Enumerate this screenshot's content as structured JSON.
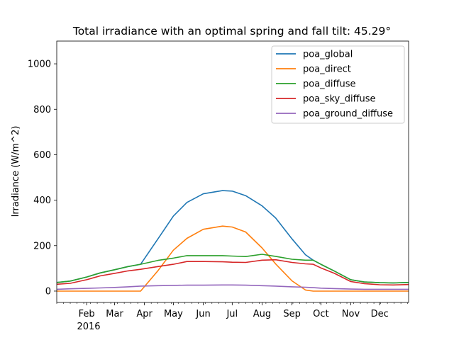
{
  "chart_data": {
    "type": "line",
    "title": "Total irradiance with an optimal spring and fall tilt: 45.29°",
    "xlabel": "",
    "ylabel": "Irradiance (W/m^2)",
    "xlim": [
      "2016-01-01",
      "2016-12-31"
    ],
    "ylim": [
      -50,
      1100
    ],
    "x_ticks": [
      {
        "date": "2016-02-01",
        "label": "Feb"
      },
      {
        "date": "2016-03-01",
        "label": "Mar"
      },
      {
        "date": "2016-04-01",
        "label": "Apr"
      },
      {
        "date": "2016-05-01",
        "label": "May"
      },
      {
        "date": "2016-06-01",
        "label": "Jun"
      },
      {
        "date": "2016-07-01",
        "label": "Jul"
      },
      {
        "date": "2016-08-01",
        "label": "Aug"
      },
      {
        "date": "2016-09-01",
        "label": "Sep"
      },
      {
        "date": "2016-10-01",
        "label": "Oct"
      },
      {
        "date": "2016-11-01",
        "label": "Nov"
      },
      {
        "date": "2016-12-01",
        "label": "Dec"
      }
    ],
    "x_year_label": "2016",
    "y_ticks": [
      0,
      200,
      400,
      600,
      800,
      1000
    ],
    "grid": false,
    "legend_position": "top-right",
    "dates": [
      "2016-01-01",
      "2016-01-15",
      "2016-02-01",
      "2016-02-15",
      "2016-03-01",
      "2016-03-15",
      "2016-03-28",
      "2016-04-15",
      "2016-05-01",
      "2016-05-15",
      "2016-06-01",
      "2016-06-21",
      "2016-07-01",
      "2016-07-15",
      "2016-08-01",
      "2016-08-15",
      "2016-09-01",
      "2016-09-15",
      "2016-09-23",
      "2016-10-01",
      "2016-10-15",
      "2016-11-01",
      "2016-11-15",
      "2016-12-01",
      "2016-12-15",
      "2016-12-31"
    ],
    "series": [
      {
        "name": "poa_global",
        "color": "#1f77b4",
        "values": [
          38,
          44,
          62,
          80,
          94,
          108,
          118,
          230,
          330,
          390,
          428,
          442,
          440,
          420,
          375,
          322,
          230,
          160,
          136,
          118,
          88,
          50,
          40,
          37,
          36,
          38
        ]
      },
      {
        "name": "poa_direct",
        "color": "#ff7f0e",
        "values": [
          0,
          0,
          0,
          0,
          0,
          0,
          0,
          90,
          180,
          232,
          272,
          286,
          282,
          260,
          190,
          120,
          45,
          5,
          0,
          0,
          0,
          0,
          0,
          0,
          0,
          0
        ]
      },
      {
        "name": "poa_diffuse",
        "color": "#2ca02c",
        "values": [
          38,
          44,
          62,
          80,
          94,
          108,
          118,
          135,
          145,
          156,
          156,
          156,
          154,
          152,
          162,
          153,
          140,
          136,
          136,
          118,
          88,
          50,
          40,
          37,
          36,
          38
        ]
      },
      {
        "name": "poa_sky_diffuse",
        "color": "#d62728",
        "values": [
          30,
          34,
          50,
          67,
          78,
          89,
          96,
          108,
          118,
          130,
          130,
          129,
          127,
          126,
          136,
          138,
          126,
          120,
          118,
          102,
          78,
          42,
          33,
          28,
          27,
          29
        ]
      },
      {
        "name": "poa_ground_diffuse",
        "color": "#9467bd",
        "values": [
          8,
          10,
          12,
          14,
          16,
          19,
          22,
          24,
          25,
          26,
          26,
          27,
          27,
          26,
          24,
          22,
          19,
          17,
          15,
          13,
          11,
          9,
          8,
          8,
          8,
          8
        ]
      }
    ]
  }
}
